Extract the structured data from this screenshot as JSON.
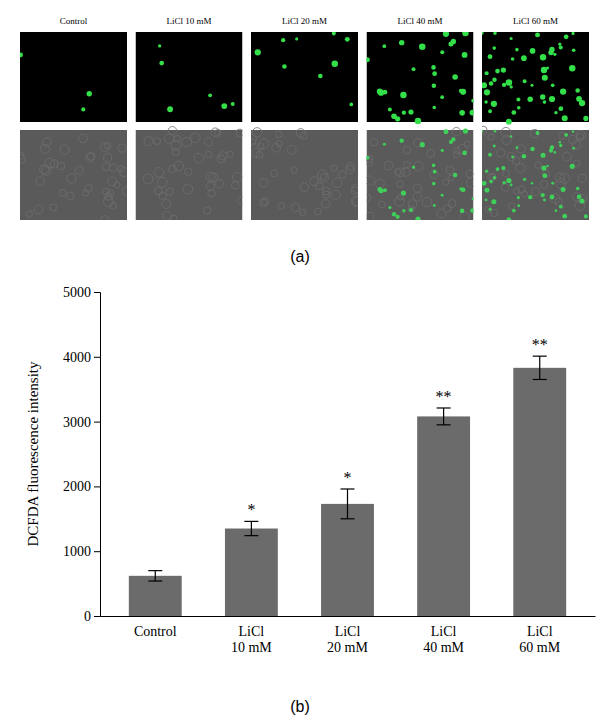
{
  "chart_data": {
    "type": "bar",
    "y_label": "DCFDA fluorescence intensity",
    "categories": [
      "Control",
      "LiCl 10 mM",
      "LiCl 20 mM",
      "LiCl 40 mM",
      "LiCl 60 mM"
    ],
    "values": [
      620,
      1350,
      1730,
      3080,
      3830
    ],
    "errors": [
      80,
      110,
      230,
      130,
      180
    ],
    "annotations": [
      null,
      "*",
      "*",
      "**",
      "**"
    ],
    "color": "#6b6b6b",
    "ylim": [
      0,
      5000
    ],
    "yticks": [
      0,
      1000,
      2000,
      3000,
      4000,
      5000
    ],
    "grid": false
  },
  "panel_a": {
    "image_labels": [
      "Control",
      "LiCl 10 mM",
      "LiCl 20 mM",
      "LiCl 40 mM",
      "LiCl 60 mM"
    ],
    "caption": "(a)"
  },
  "panel_b": {
    "caption": "(b)"
  }
}
